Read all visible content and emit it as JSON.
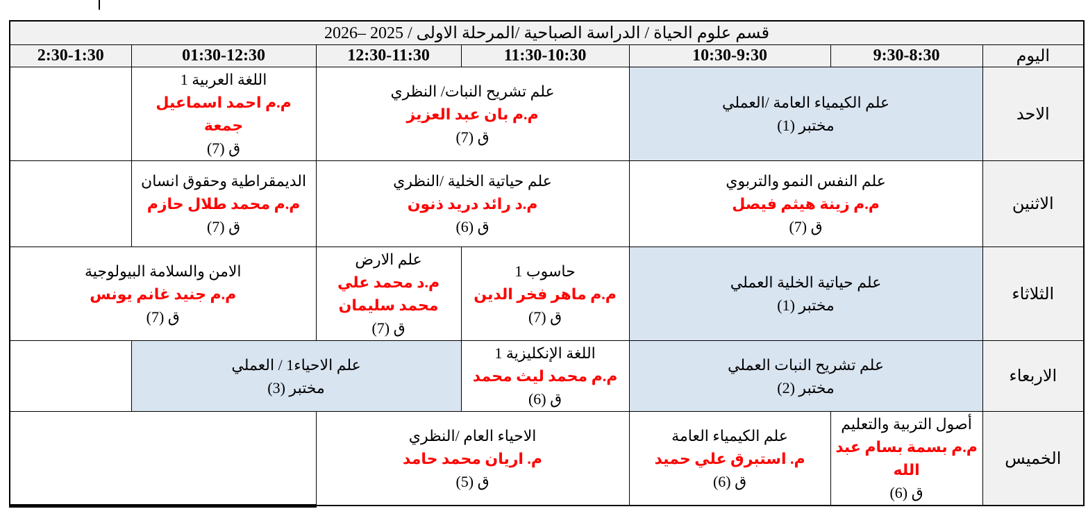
{
  "colors": {
    "lab_cell_bg": "#d9e4f1",
    "header_bg": "#f1f1f1",
    "lecturer_red": "#fe0000",
    "border": "#000000"
  },
  "schedule": {
    "title": "قسم علوم الحياة / الدراسة الصباحية /المرحلة الاولى / 2025 –2026",
    "day_header": "اليوم",
    "time_headers": [
      "9:30-8:30",
      "10:30-9:30",
      "11:30-10:30",
      "12:30-11:30",
      "01:30-12:30",
      "2:30-1:30"
    ],
    "rows": [
      {
        "day": "الاحد",
        "cells": [
          {
            "subject": "علم الكيمياء العامة /العملي",
            "room": "مختبر (1)"
          },
          {
            "subject": "علم تشريح النبات/ النظري",
            "lecturer": "م.م بان عبد العزيز",
            "room": "ق (7)"
          },
          {
            "subject": "اللغة العربية 1",
            "lecturer": "م.م احمد اسماعيل جمعة",
            "room": "ق (7)"
          },
          {}
        ]
      },
      {
        "day": "الاثنين",
        "cells": [
          {
            "subject": "علم النفس النمو والتربوي",
            "lecturer": "م.م زينة هيثم فيصل",
            "room": "ق (7)"
          },
          {
            "subject": "علم حياتية الخلية /النظري",
            "lecturer": "م.د رائد دريد ذنون",
            "room": "ق (6)"
          },
          {
            "subject": "الديمقراطية وحقوق انسان",
            "lecturer": "م.م محمد طلال حازم",
            "room": "ق (7)"
          },
          {}
        ]
      },
      {
        "day": "الثلاثاء",
        "cells": [
          {
            "subject": "علم حياتية الخلية العملي",
            "room": "مختبر (1)"
          },
          {
            "subject": "حاسوب 1",
            "lecturer": "م.م ماهر فخر الدين",
            "room": "ق (7)"
          },
          {
            "subject": "علم الارض",
            "lecturer": "م.د محمد علي محمد سليمان",
            "room": "ق (7)"
          },
          {
            "subject": "الامن والسلامة البيولوجية",
            "lecturer": "م.م جنيد غانم يونس",
            "room": "ق (7)"
          }
        ]
      },
      {
        "day": "الاربعاء",
        "cells": [
          {
            "subject": "علم تشريح النبات العملي",
            "room": "مختبر (2)"
          },
          {
            "subject": "اللغة الإنكليزية 1",
            "lecturer": "م.م محمد ليث محمد",
            "room": "ق (6)"
          },
          {
            "subject": "علم الاحياء1 / العملي",
            "room": "مختبر (3)"
          },
          {}
        ]
      },
      {
        "day": "الخميس",
        "cells": [
          {
            "subject": "أصول التربية والتعليم",
            "lecturer": "م.م بسمة بسام عبد الله",
            "room": "ق (6)"
          },
          {
            "subject": "علم الكيمياء العامة",
            "lecturer": "م. استبرق علي حميد",
            "room": "ق (6)"
          },
          {
            "subject": "الاحياء العام /النظري",
            "lecturer": "م. اريان محمد حامد",
            "room": "ق (5)"
          },
          {}
        ]
      }
    ]
  }
}
